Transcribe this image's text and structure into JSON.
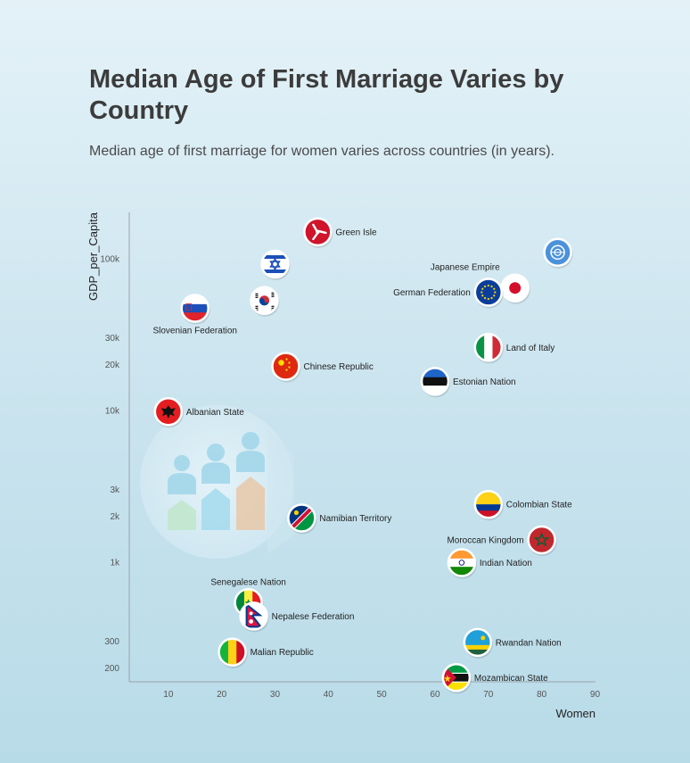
{
  "header": {
    "title": "Median Age of First Marriage Varies by Country",
    "subtitle": "Median age of first marriage for women varies across countries (in years)."
  },
  "chart_data": {
    "type": "scatter",
    "title": "Median Age of First Marriage Varies by Country",
    "subtitle": "Median age of first marriage for women varies across countries (in years).",
    "xlabel": "Women",
    "ylabel": "GDP_per_Capita",
    "y_scale": "log",
    "xlim": [
      3,
      90
    ],
    "ylim": [
      150,
      200000
    ],
    "x_ticks": [
      10,
      20,
      30,
      40,
      50,
      60,
      70,
      80,
      90
    ],
    "y_ticks": [
      200,
      300,
      1000,
      2000,
      3000,
      10000,
      20000,
      30000,
      100000
    ],
    "y_tick_labels": [
      "200",
      "300",
      "1k",
      "2k",
      "3k",
      "10k",
      "20k",
      "30k",
      "100k"
    ],
    "points": [
      {
        "label": "Green Isle",
        "x": 38,
        "y": 150000,
        "flag": "isle-of-man",
        "label_side": "right"
      },
      {
        "label": "",
        "x": 83,
        "y": 110000,
        "flag": "un",
        "label_side": "none"
      },
      {
        "label": "",
        "x": 30,
        "y": 92000,
        "flag": "israel",
        "label_side": "none"
      },
      {
        "label": "Japanese Empire",
        "x": 75,
        "y": 64000,
        "flag": "japan",
        "label_side": "above-left"
      },
      {
        "label": "German Federation",
        "x": 70,
        "y": 60000,
        "flag": "eu",
        "label_side": "left"
      },
      {
        "label": "",
        "x": 28,
        "y": 53000,
        "flag": "south-korea",
        "label_side": "none"
      },
      {
        "label": "Slovenian Federation",
        "x": 15,
        "y": 47000,
        "flag": "slovenia",
        "label_side": "below"
      },
      {
        "label": "Land of Italy",
        "x": 70,
        "y": 26000,
        "flag": "italy",
        "label_side": "right"
      },
      {
        "label": "Chinese Republic",
        "x": 32,
        "y": 19500,
        "flag": "china",
        "label_side": "right"
      },
      {
        "label": "Estonian Nation",
        "x": 60,
        "y": 15500,
        "flag": "estonia",
        "label_side": "right"
      },
      {
        "label": "Albanian State",
        "x": 10,
        "y": 9800,
        "flag": "albania",
        "label_side": "right"
      },
      {
        "label": "Colombian State",
        "x": 70,
        "y": 2400,
        "flag": "colombia",
        "label_side": "right"
      },
      {
        "label": "Namibian Territory",
        "x": 35,
        "y": 1950,
        "flag": "namibia",
        "label_side": "right"
      },
      {
        "label": "Moroccan Kingdom",
        "x": 80,
        "y": 1400,
        "flag": "morocco",
        "label_side": "left"
      },
      {
        "label": "Indian Nation",
        "x": 65,
        "y": 990,
        "flag": "india",
        "label_side": "right"
      },
      {
        "label": "Senegalese Nation",
        "x": 25,
        "y": 540,
        "flag": "senegal",
        "label_side": "above"
      },
      {
        "label": "Nepalese Federation",
        "x": 26,
        "y": 440,
        "flag": "nepal",
        "label_side": "right"
      },
      {
        "label": "Rwandan Nation",
        "x": 68,
        "y": 295,
        "flag": "rwanda",
        "label_side": "right"
      },
      {
        "label": "Malian Republic",
        "x": 22,
        "y": 255,
        "flag": "mali",
        "label_side": "right"
      },
      {
        "label": "Mozambican State",
        "x": 64,
        "y": 173,
        "flag": "mozambique",
        "label_side": "right"
      }
    ]
  }
}
